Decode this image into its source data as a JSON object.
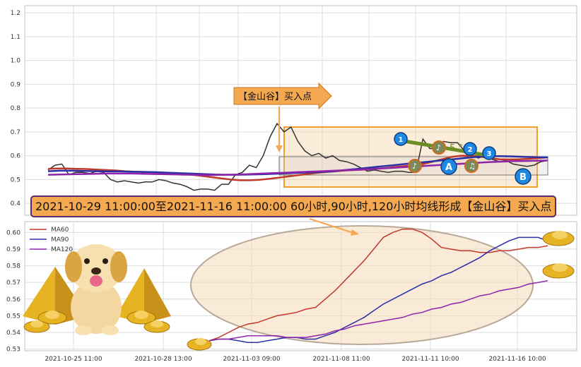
{
  "top_chart": {
    "type": "line",
    "ylim": [
      0.35,
      1.23
    ],
    "yticks": [
      "0.4",
      "0.5",
      "0.6",
      "0.7",
      "0.8",
      "0.9",
      "1.0",
      "1.1",
      "1.2"
    ],
    "series": [
      {
        "id": "price",
        "color": "#333333",
        "values": [
          0.54,
          0.56,
          0.565,
          0.52,
          0.53,
          0.53,
          0.525,
          0.535,
          0.53,
          0.5,
          0.49,
          0.495,
          0.49,
          0.485,
          0.49,
          0.49,
          0.5,
          0.495,
          0.485,
          0.48,
          0.47,
          0.455,
          0.46,
          0.46,
          0.455,
          0.48,
          0.48,
          0.52,
          0.53,
          0.56,
          0.55,
          0.6,
          0.68,
          0.735,
          0.7,
          0.72,
          0.66,
          0.62,
          0.6,
          0.61,
          0.59,
          0.6,
          0.58,
          0.575,
          0.565,
          0.55,
          0.535,
          0.54,
          0.535,
          0.53,
          0.535,
          0.535,
          0.53,
          0.53,
          0.67,
          0.63,
          0.63,
          0.66,
          0.655,
          0.655,
          0.62,
          0.6,
          0.59,
          0.6,
          0.585,
          0.575,
          0.58,
          0.565,
          0.56,
          0.555,
          0.56,
          0.575,
          0.58
        ]
      },
      {
        "id": "ma60",
        "color": "#c0392b",
        "values": [
          0.545,
          0.546,
          0.546,
          0.545,
          0.544,
          0.542,
          0.54,
          0.538,
          0.535,
          0.533,
          0.532,
          0.53,
          0.528,
          0.526,
          0.524,
          0.52,
          0.515,
          0.51,
          0.505,
          0.5,
          0.497,
          0.497,
          0.499,
          0.503,
          0.508,
          0.513,
          0.518,
          0.523,
          0.528,
          0.532,
          0.535,
          0.538,
          0.54,
          0.542,
          0.545,
          0.548,
          0.552,
          0.556,
          0.56,
          0.565,
          0.575,
          0.585,
          0.595,
          0.6,
          0.6,
          0.596,
          0.59,
          0.585,
          0.584,
          0.585,
          0.587,
          0.59,
          0.593
        ]
      },
      {
        "id": "ma90",
        "color": "#2b2fa6",
        "values": [
          0.535,
          0.537,
          0.537,
          0.536,
          0.535,
          0.534,
          0.534,
          0.533,
          0.532,
          0.531,
          0.529,
          0.527,
          0.525,
          0.523,
          0.521,
          0.52,
          0.52,
          0.521,
          0.522,
          0.524,
          0.526,
          0.528,
          0.53,
          0.532,
          0.535,
          0.54,
          0.545,
          0.55,
          0.555,
          0.56,
          0.565,
          0.57,
          0.575,
          0.58,
          0.585,
          0.59,
          0.595,
          0.598,
          0.598,
          0.597,
          0.595,
          0.594,
          0.593
        ]
      },
      {
        "id": "ma120",
        "color": "#8e24aa",
        "values": [
          0.52,
          0.521,
          0.522,
          0.523,
          0.524,
          0.525,
          0.525,
          0.525,
          0.524,
          0.523,
          0.522,
          0.521,
          0.52,
          0.519,
          0.519,
          0.52,
          0.521,
          0.523,
          0.525,
          0.527,
          0.529,
          0.531,
          0.533,
          0.535,
          0.537,
          0.539,
          0.541,
          0.543,
          0.546,
          0.549,
          0.552,
          0.555,
          0.558,
          0.561,
          0.564,
          0.567,
          0.57,
          0.573,
          0.575,
          0.577,
          0.578,
          0.579,
          0.58
        ]
      }
    ]
  },
  "bottom_chart": {
    "type": "line",
    "ylim": [
      0.529,
      0.6065
    ],
    "yticks": [
      "0.53",
      "0.54",
      "0.55",
      "0.56",
      "0.57",
      "0.58",
      "0.59",
      "0.60"
    ],
    "xticks": [
      "2021-10-25 11:00",
      "2021-10-28 13:00",
      "2021-11-03 09:00",
      "2021-11-08 11:00",
      "2021-11-11 10:00",
      "2021-11-16 10:00"
    ],
    "legend": [
      "MA60",
      "MA90",
      "MA120"
    ],
    "series": [
      {
        "id": "ma60",
        "color": "#c0392b",
        "values": [
          0.535,
          0.537,
          0.54,
          0.543,
          0.545,
          0.546,
          0.548,
          0.55,
          0.551,
          0.552,
          0.554,
          0.555,
          0.56,
          0.565,
          0.571,
          0.577,
          0.583,
          0.59,
          0.597,
          0.6,
          0.602,
          0.602,
          0.6,
          0.596,
          0.591,
          0.59,
          0.589,
          0.589,
          0.588,
          0.588,
          0.589,
          0.589,
          0.59,
          0.591,
          0.591,
          0.592
        ]
      },
      {
        "id": "ma90",
        "color": "#2b2fa6",
        "values": [
          0.535,
          0.536,
          0.536,
          0.535,
          0.534,
          0.534,
          0.535,
          0.536,
          0.537,
          0.537,
          0.536,
          0.536,
          0.538,
          0.54,
          0.543,
          0.546,
          0.549,
          0.553,
          0.557,
          0.56,
          0.563,
          0.566,
          0.569,
          0.571,
          0.574,
          0.576,
          0.579,
          0.582,
          0.585,
          0.589,
          0.592,
          0.595,
          0.597,
          0.597,
          0.597,
          0.595
        ]
      },
      {
        "id": "ma120",
        "color": "#8e24aa",
        "values": [
          0.535,
          0.536,
          0.536,
          0.537,
          0.538,
          0.538,
          0.538,
          0.538,
          0.537,
          0.537,
          0.537,
          0.538,
          0.539,
          0.541,
          0.542,
          0.544,
          0.545,
          0.546,
          0.547,
          0.548,
          0.549,
          0.551,
          0.552,
          0.554,
          0.555,
          0.557,
          0.558,
          0.56,
          0.562,
          0.563,
          0.565,
          0.566,
          0.567,
          0.569,
          0.57,
          0.571
        ]
      }
    ]
  },
  "callout_label": "【金山谷】买入点",
  "banner_text": "2021-10-29 11:00:00至2021-11-16 11:00:00 60小时,90小时,120小时均线形成【金山谷】买入点",
  "badges": [
    "1",
    "2",
    "3",
    "A",
    "B"
  ],
  "angle_label": "5 °",
  "colors": {
    "banner_bg": "#f4a84f",
    "highlight": "#f0a030",
    "badge_blue": "#1e88e5",
    "olive": "#6b8e23"
  }
}
